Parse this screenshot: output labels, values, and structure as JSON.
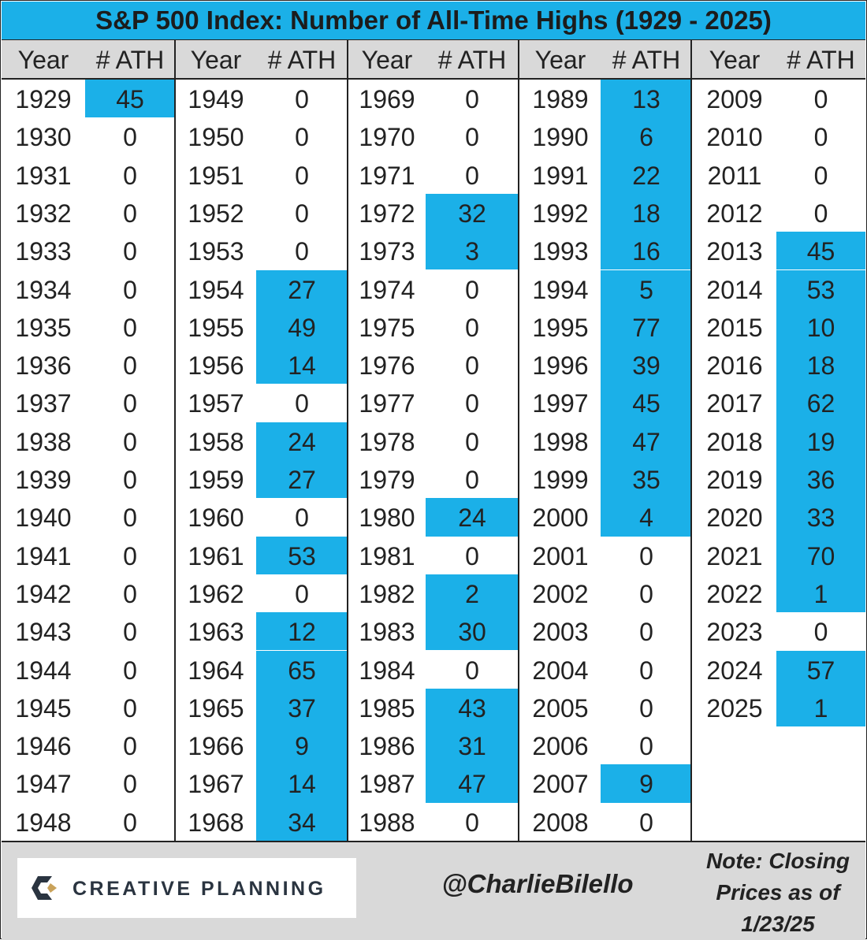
{
  "title": "S&P 500 Index: Number of All-Time Highs (1929 - 2025)",
  "header": {
    "year_label": "Year",
    "ath_label": "# ATH"
  },
  "colors": {
    "highlight": "#1bb0e8",
    "header_bg": "#d9d9d9"
  },
  "chart_data": {
    "type": "table",
    "title": "S&P 500 Index: Number of All-Time Highs (1929 - 2025)",
    "columns": [
      "Year",
      "# ATH"
    ],
    "rows": [
      [
        "1929",
        "45"
      ],
      [
        "1930",
        "0"
      ],
      [
        "1931",
        "0"
      ],
      [
        "1932",
        "0"
      ],
      [
        "1933",
        "0"
      ],
      [
        "1934",
        "0"
      ],
      [
        "1935",
        "0"
      ],
      [
        "1936",
        "0"
      ],
      [
        "1937",
        "0"
      ],
      [
        "1938",
        "0"
      ],
      [
        "1939",
        "0"
      ],
      [
        "1940",
        "0"
      ],
      [
        "1941",
        "0"
      ],
      [
        "1942",
        "0"
      ],
      [
        "1943",
        "0"
      ],
      [
        "1944",
        "0"
      ],
      [
        "1945",
        "0"
      ],
      [
        "1946",
        "0"
      ],
      [
        "1947",
        "0"
      ],
      [
        "1948",
        "0"
      ],
      [
        "1949",
        "0"
      ],
      [
        "1950",
        "0"
      ],
      [
        "1951",
        "0"
      ],
      [
        "1952",
        "0"
      ],
      [
        "1953",
        "0"
      ],
      [
        "1954",
        "27"
      ],
      [
        "1955",
        "49"
      ],
      [
        "1956",
        "14"
      ],
      [
        "1957",
        "0"
      ],
      [
        "1958",
        "24"
      ],
      [
        "1959",
        "27"
      ],
      [
        "1960",
        "0"
      ],
      [
        "1961",
        "53"
      ],
      [
        "1962",
        "0"
      ],
      [
        "1963",
        "12"
      ],
      [
        "1964",
        "65"
      ],
      [
        "1965",
        "37"
      ],
      [
        "1966",
        "9"
      ],
      [
        "1967",
        "14"
      ],
      [
        "1968",
        "34"
      ],
      [
        "1969",
        "0"
      ],
      [
        "1970",
        "0"
      ],
      [
        "1971",
        "0"
      ],
      [
        "1972",
        "32"
      ],
      [
        "1973",
        "3"
      ],
      [
        "1974",
        "0"
      ],
      [
        "1975",
        "0"
      ],
      [
        "1976",
        "0"
      ],
      [
        "1977",
        "0"
      ],
      [
        "1978",
        "0"
      ],
      [
        "1979",
        "0"
      ],
      [
        "1980",
        "24"
      ],
      [
        "1981",
        "0"
      ],
      [
        "1982",
        "2"
      ],
      [
        "1983",
        "30"
      ],
      [
        "1984",
        "0"
      ],
      [
        "1985",
        "43"
      ],
      [
        "1986",
        "31"
      ],
      [
        "1987",
        "47"
      ],
      [
        "1988",
        "0"
      ],
      [
        "1989",
        "13"
      ],
      [
        "1990",
        "6"
      ],
      [
        "1991",
        "22"
      ],
      [
        "1992",
        "18"
      ],
      [
        "1993",
        "16"
      ],
      [
        "1994",
        "5"
      ],
      [
        "1995",
        "77"
      ],
      [
        "1996",
        "39"
      ],
      [
        "1997",
        "45"
      ],
      [
        "1998",
        "47"
      ],
      [
        "1999",
        "35"
      ],
      [
        "2000",
        "4"
      ],
      [
        "2001",
        "0"
      ],
      [
        "2002",
        "0"
      ],
      [
        "2003",
        "0"
      ],
      [
        "2004",
        "0"
      ],
      [
        "2005",
        "0"
      ],
      [
        "2006",
        "0"
      ],
      [
        "2007",
        "9"
      ],
      [
        "2008",
        "0"
      ],
      [
        "2009",
        "0"
      ],
      [
        "2010",
        "0"
      ],
      [
        "2011",
        "0"
      ],
      [
        "2012",
        "0"
      ],
      [
        "2013",
        "45"
      ],
      [
        "2014",
        "53"
      ],
      [
        "2015",
        "10"
      ],
      [
        "2016",
        "18"
      ],
      [
        "2017",
        "62"
      ],
      [
        "2018",
        "19"
      ],
      [
        "2019",
        "36"
      ],
      [
        "2020",
        "33"
      ],
      [
        "2021",
        "70"
      ],
      [
        "2022",
        "1"
      ],
      [
        "2023",
        "0"
      ],
      [
        "2024",
        "57"
      ],
      [
        "2025",
        "1"
      ]
    ]
  },
  "footer": {
    "logo_text": "CREATIVE PLANNING",
    "handle": "@CharlieBilello",
    "note_lines": [
      "Note: Closing",
      "Prices as of",
      "1/23/25"
    ]
  }
}
